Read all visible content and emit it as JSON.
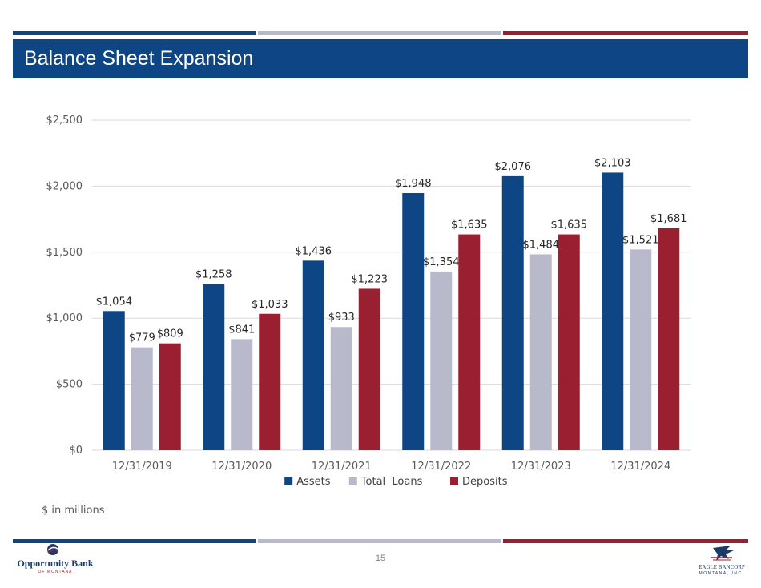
{
  "header": {
    "title": "Balance Sheet Expansion"
  },
  "colors": {
    "navy": "#0d4585",
    "gray": "#b8bacb",
    "maroon": "#9a1f31",
    "grid": "#d9d9d9"
  },
  "chart_data": {
    "type": "bar",
    "categories": [
      "12/31/2019",
      "12/31/2020",
      "12/31/2021",
      "12/31/2022",
      "12/31/2023",
      "12/31/2024"
    ],
    "series": [
      {
        "name": "Assets",
        "color": "#0d4585",
        "values": [
          1054,
          1258,
          1436,
          1948,
          2076,
          2103
        ],
        "labels": [
          "$1,054",
          "$1,258",
          "$1,436",
          "$1,948",
          "$2,076",
          "$2,103"
        ]
      },
      {
        "name": "Total  Loans",
        "color": "#b8bacb",
        "values": [
          779,
          841,
          933,
          1354,
          1484,
          1521
        ],
        "labels": [
          "$779",
          "$841",
          "$933",
          "$1,354",
          "$1,484",
          "$1,521"
        ]
      },
      {
        "name": "Deposits",
        "color": "#9a1f31",
        "values": [
          809,
          1033,
          1223,
          1635,
          1635,
          1681
        ],
        "labels": [
          "$809",
          "$1,033",
          "$1,223",
          "$1,635",
          "$1,635",
          "$1,681"
        ]
      }
    ],
    "ylim": [
      0,
      2500
    ],
    "yticks": [
      0,
      500,
      1000,
      1500,
      2000,
      2500
    ],
    "ytick_labels": [
      "$0",
      "$500",
      "$1,000",
      "$1,500",
      "$2,000",
      "$2,500"
    ],
    "grid": true,
    "legend": "bottom",
    "xlabel": "",
    "ylabel": ""
  },
  "footnote": "$ in millions",
  "page_number": "15",
  "logos": {
    "left": {
      "name": "Opportunity Bank",
      "sub": "OF MONTANA"
    },
    "right": {
      "name": "EAGLE BANCORP",
      "sub": "MONTANA, INC."
    }
  }
}
